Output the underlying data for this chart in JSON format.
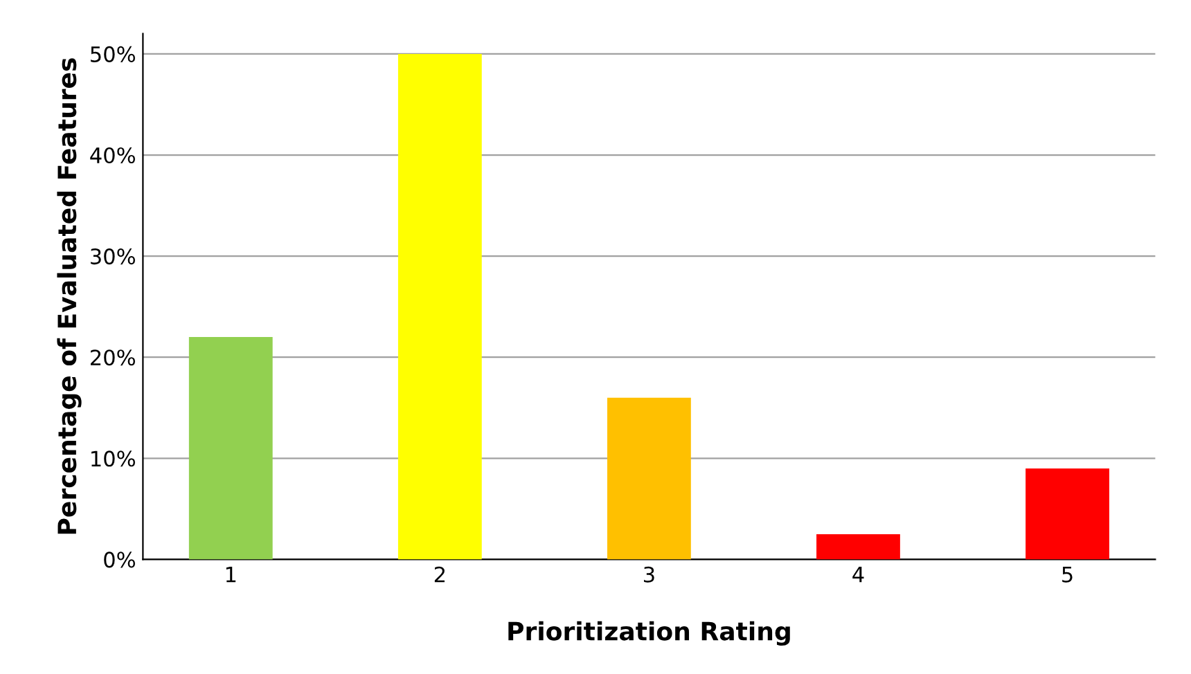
{
  "chart_data": {
    "type": "bar",
    "xlabel": "Prioritization Rating",
    "ylabel": "Percentage of Evaluated Features",
    "categories": [
      "1",
      "2",
      "3",
      "4",
      "5"
    ],
    "values": [
      22,
      50,
      16,
      2.5,
      9
    ],
    "colors": [
      "#92d050",
      "#ffff00",
      "#ffc000",
      "#ff0000",
      "#ff0000"
    ],
    "ylim": [
      0,
      52
    ],
    "yticks": [
      {
        "value": 0,
        "label": "0%"
      },
      {
        "value": 10,
        "label": "10%"
      },
      {
        "value": 20,
        "label": "20%"
      },
      {
        "value": 30,
        "label": "30%"
      },
      {
        "value": 40,
        "label": "40%"
      },
      {
        "value": 50,
        "label": "50%"
      }
    ],
    "grid": "y"
  }
}
